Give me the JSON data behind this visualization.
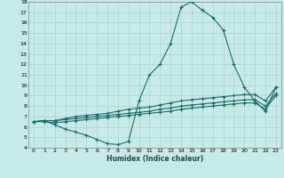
{
  "xlabel": "Humidex (Indice chaleur)",
  "xlim": [
    -0.5,
    23.5
  ],
  "ylim": [
    4,
    18
  ],
  "yticks": [
    4,
    5,
    6,
    7,
    8,
    9,
    10,
    11,
    12,
    13,
    14,
    15,
    16,
    17,
    18
  ],
  "xticks": [
    0,
    1,
    2,
    3,
    4,
    5,
    6,
    7,
    8,
    9,
    10,
    11,
    12,
    13,
    14,
    15,
    16,
    17,
    18,
    19,
    20,
    21,
    22,
    23
  ],
  "bg_color": "#c8eae6",
  "grid_color": "#b0d8d4",
  "line_color": "#1a6b6b",
  "line1_x": [
    0,
    1,
    2,
    3,
    4,
    5,
    6,
    7,
    8,
    9,
    10,
    11,
    12,
    13,
    14,
    15,
    16,
    17,
    18,
    19,
    20,
    21,
    22,
    23
  ],
  "line1_y": [
    6.5,
    6.6,
    6.2,
    5.8,
    5.5,
    5.2,
    4.8,
    4.4,
    4.3,
    4.6,
    8.5,
    11.0,
    12.0,
    14.0,
    17.5,
    18.0,
    17.2,
    16.5,
    15.3,
    12.0,
    9.8,
    8.5,
    7.5,
    9.8
  ],
  "line2_x": [
    0,
    1,
    2,
    3,
    4,
    5,
    6,
    7,
    8,
    9,
    10,
    11,
    12,
    13,
    14,
    15,
    16,
    17,
    18,
    19,
    20,
    21,
    22,
    23
  ],
  "line2_y": [
    6.5,
    6.6,
    6.6,
    6.8,
    7.0,
    7.1,
    7.2,
    7.3,
    7.5,
    7.7,
    7.8,
    7.9,
    8.1,
    8.3,
    8.5,
    8.6,
    8.7,
    8.8,
    8.9,
    9.0,
    9.1,
    9.1,
    8.5,
    9.8
  ],
  "line3_x": [
    0,
    1,
    2,
    3,
    4,
    5,
    6,
    7,
    8,
    9,
    10,
    11,
    12,
    13,
    14,
    15,
    16,
    17,
    18,
    19,
    20,
    21,
    22,
    23
  ],
  "line3_y": [
    6.5,
    6.6,
    6.6,
    6.7,
    6.8,
    6.9,
    7.0,
    7.1,
    7.2,
    7.3,
    7.4,
    7.5,
    7.7,
    7.8,
    8.0,
    8.1,
    8.2,
    8.3,
    8.4,
    8.5,
    8.6,
    8.6,
    8.0,
    9.2
  ],
  "line4_x": [
    0,
    1,
    2,
    3,
    4,
    5,
    6,
    7,
    8,
    9,
    10,
    11,
    12,
    13,
    14,
    15,
    16,
    17,
    18,
    19,
    20,
    21,
    22,
    23
  ],
  "line4_y": [
    6.5,
    6.5,
    6.4,
    6.5,
    6.6,
    6.7,
    6.8,
    6.9,
    7.0,
    7.1,
    7.2,
    7.3,
    7.4,
    7.5,
    7.7,
    7.8,
    7.9,
    8.0,
    8.1,
    8.2,
    8.3,
    8.3,
    7.7,
    9.0
  ]
}
